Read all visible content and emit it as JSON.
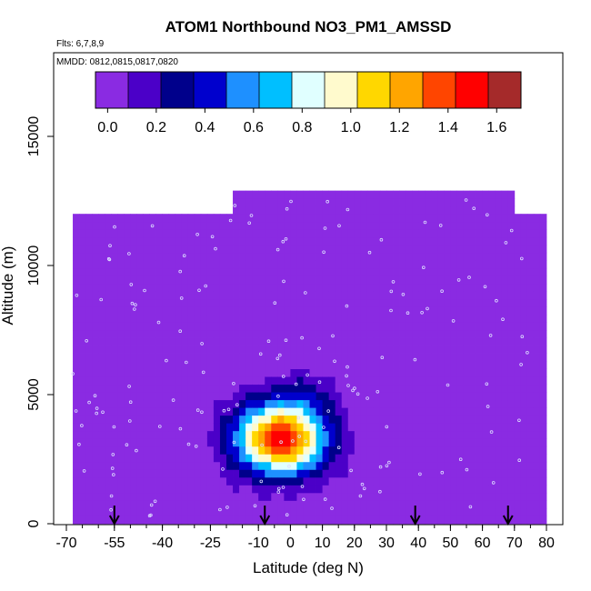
{
  "chart_data": {
    "type": "heatmap",
    "title": "ATOM1 Northbound NO3_PM1_AMSSD",
    "flights_label": "Flts: 6,7,8,9",
    "dates_label": "MMDD: 0812,0815,0817,0820",
    "xlabel": "Latitude (deg N)",
    "ylabel": "Altitude (m)",
    "xlim": [
      -70,
      80
    ],
    "ylim": [
      0,
      17500
    ],
    "x_tick_labels": [
      "-70",
      "-55",
      "-40",
      "-25",
      "-10",
      "0",
      "10",
      "20",
      "30",
      "40",
      "50",
      "60",
      "70",
      "80"
    ],
    "x_ticks": [
      -70,
      -55,
      -40,
      -25,
      -10,
      0,
      10,
      20,
      30,
      40,
      50,
      60,
      70,
      80
    ],
    "y_tick_labels": [
      "0",
      "5000",
      "10000",
      "15000"
    ],
    "y_ticks": [
      0,
      5000,
      10000,
      15000
    ],
    "colorbar": {
      "range": [
        -0.05,
        1.7
      ],
      "tick_labels": [
        "0.0",
        "0.2",
        "0.4",
        "0.6",
        "0.8",
        "1.0",
        "1.2",
        "1.4",
        "1.6"
      ],
      "ticks": [
        0,
        0.2,
        0.4,
        0.6,
        0.8,
        1.0,
        1.2,
        1.4,
        1.6
      ],
      "colors": [
        "#8a2be2",
        "#4b00c8",
        "#00008b",
        "#0000cd",
        "#1e90ff",
        "#00bfff",
        "#e0ffff",
        "#fffacd",
        "#ffd700",
        "#ffa500",
        "#ff4500",
        "#ff0000",
        "#a52a2a"
      ]
    },
    "background_value": 0.0,
    "domain_top_profile": [
      {
        "lat": -68,
        "alt": 11500
      },
      {
        "lat": -60,
        "alt": 11900
      },
      {
        "lat": -45,
        "alt": 11900
      },
      {
        "lat": -20,
        "alt": 12000
      },
      {
        "lat": 45,
        "alt": 12900
      },
      {
        "lat": 68,
        "alt": 12000
      },
      {
        "lat": 78,
        "alt": 11200
      }
    ],
    "plume": {
      "center_lat": -3,
      "center_alt": 3300,
      "peak_value": 1.55,
      "lat_halfwidth": 15,
      "alt_halfwidth": 1400
    },
    "secondary_plume": {
      "center_lat": 5,
      "center_alt": 5000,
      "peak_value": 0.2,
      "lat_halfwidth": 8,
      "alt_halfwidth": 800
    },
    "flight_track_markers_lat": [
      -55,
      -8,
      39,
      68
    ],
    "legend": "top, horizontal colorbar"
  }
}
